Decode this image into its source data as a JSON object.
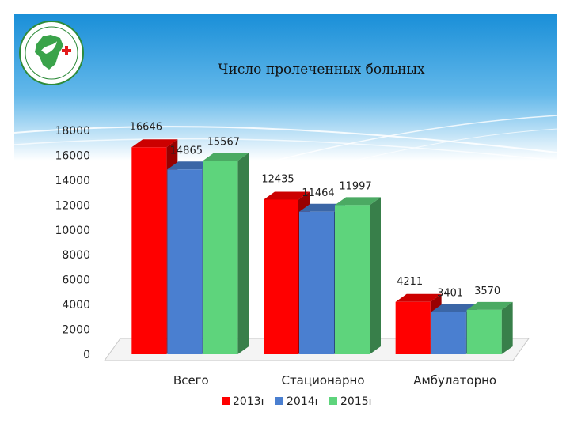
{
  "slide": {
    "title": "Число пролеченных больных",
    "background": "#ffffff",
    "header_gradient": [
      "#1a8fd8",
      "#ffffff"
    ]
  },
  "logo": {
    "icon": "dove-on-map-with-red-cross-emblem"
  },
  "chart_data": {
    "type": "bar",
    "title": "",
    "categories": [
      "Всего",
      "Стационарно",
      "Амбулаторно"
    ],
    "series": [
      {
        "name": "2013г",
        "values": [
          16646,
          12435,
          4211
        ],
        "color": "#ff0000"
      },
      {
        "name": "2014г",
        "values": [
          14865,
          11464,
          3401
        ],
        "color": "#4a7fd0"
      },
      {
        "name": "2015г",
        "values": [
          15567,
          11997,
          3570
        ],
        "color": "#5ed47c"
      }
    ],
    "data_labels": [
      [
        "16646",
        "12435",
        "4211"
      ],
      [
        "14865",
        "11464",
        "3401"
      ],
      [
        "15567",
        "11997",
        "3570"
      ]
    ],
    "yticks": [
      "0",
      "2000",
      "4000",
      "6000",
      "8000",
      "10000",
      "12000",
      "14000",
      "16000",
      "18000"
    ],
    "ylim": [
      0,
      18000
    ],
    "xlabel": "",
    "ylabel": "",
    "grid": false,
    "legend": "bottom",
    "style": "3d-clustered-column"
  }
}
